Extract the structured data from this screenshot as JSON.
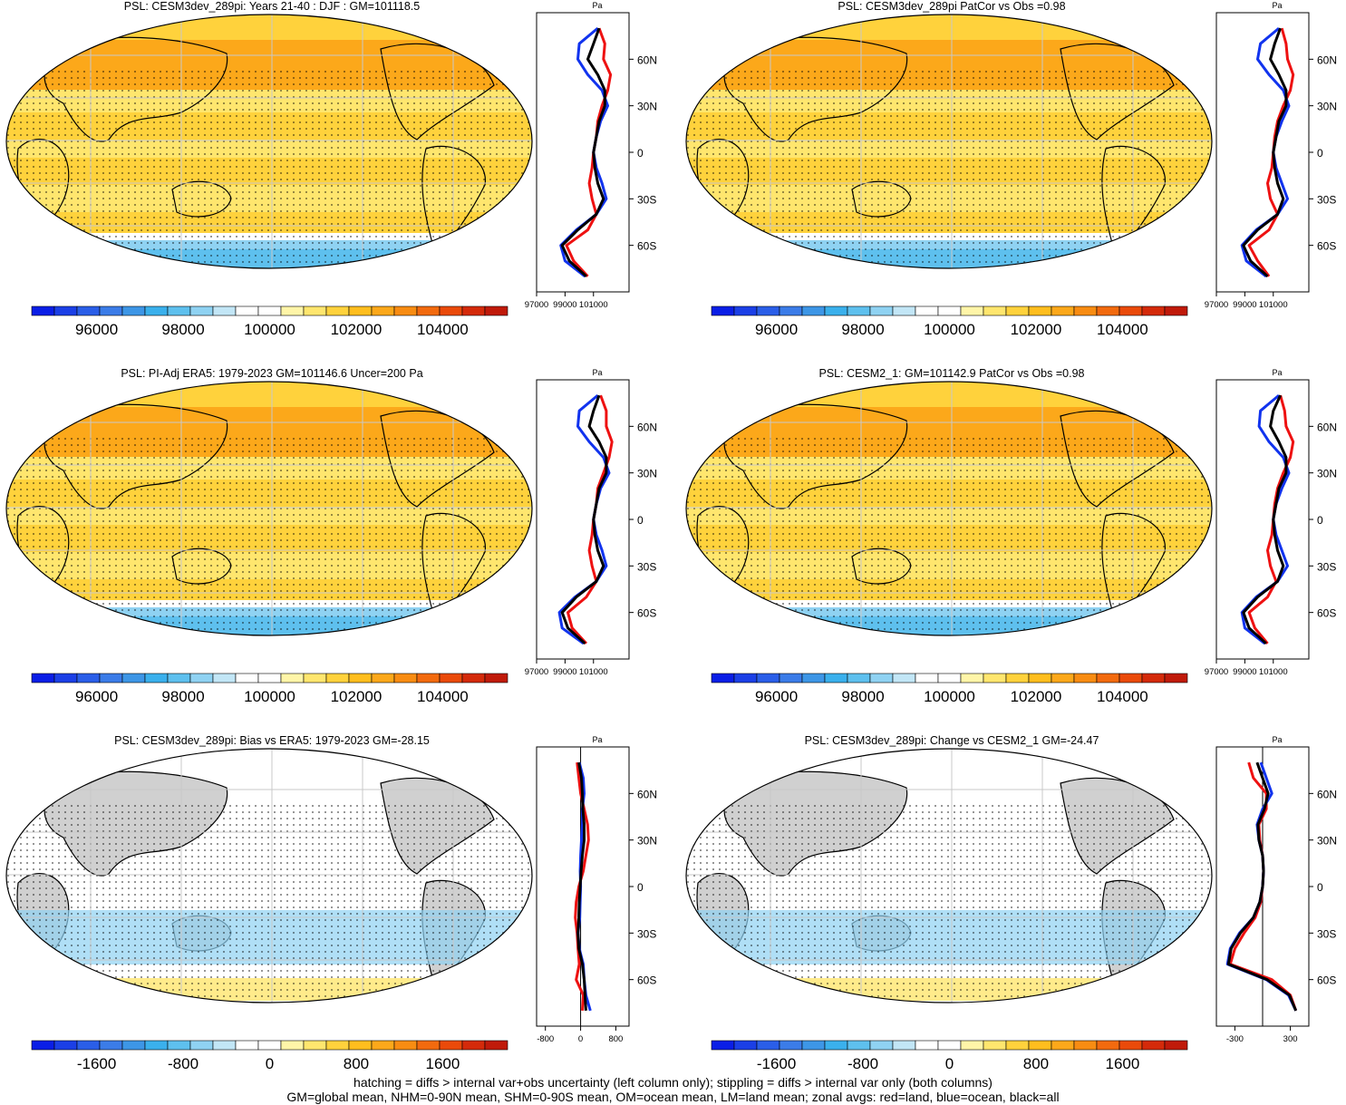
{
  "chart_data": [
    {
      "type": "heatmap",
      "title": "PSL: CESM3dev_289pi: Years 21-40 : DJF : GM=101118.5",
      "colorbar_ticks": [
        "96000",
        "98000",
        "100000",
        "102000",
        "104000"
      ],
      "colorbar_range": [
        94500,
        105500
      ],
      "zonal_axis_label": "Pa",
      "zonal_x_ticks": [
        "97000",
        "99000",
        "101000"
      ],
      "zonal_xlim": [
        97000,
        103500
      ],
      "zonal_y_ticks": [
        "60N",
        "30N",
        "0",
        "30S",
        "60S"
      ],
      "series": [
        {
          "name": "land",
          "color": "#ee1111",
          "lat": [
            80,
            70,
            60,
            50,
            40,
            30,
            20,
            10,
            0,
            -10,
            -20,
            -30,
            -40,
            -50,
            -60,
            -70,
            -80
          ],
          "values": [
            101400,
            101800,
            101700,
            102200,
            102000,
            101600,
            101300,
            101200,
            101000,
            100900,
            100700,
            100900,
            101200,
            100600,
            99100,
            99600,
            100600
          ]
        },
        {
          "name": "ocean",
          "color": "#1133ee",
          "lat": [
            80,
            70,
            60,
            50,
            40,
            30,
            20,
            10,
            0,
            -10,
            -20,
            -30,
            -40,
            -50,
            -60,
            -70,
            -80
          ],
          "values": [
            101300,
            100000,
            99900,
            100600,
            101600,
            102000,
            101500,
            101200,
            101000,
            101200,
            101600,
            101900,
            101200,
            99800,
            98700,
            99000,
            100400
          ]
        },
        {
          "name": "all",
          "color": "#000000",
          "lat": [
            80,
            70,
            60,
            50,
            40,
            30,
            20,
            10,
            0,
            -10,
            -20,
            -30,
            -40,
            -50,
            -60,
            -70,
            -80
          ],
          "values": [
            101400,
            101000,
            100600,
            101300,
            101800,
            101800,
            101400,
            101200,
            101000,
            101100,
            101300,
            101700,
            101200,
            99900,
            98800,
            99300,
            100500
          ]
        }
      ]
    },
    {
      "type": "heatmap",
      "title": "PSL: CESM3dev_289pi PatCor vs Obs =0.98",
      "colorbar_ticks": [
        "96000",
        "98000",
        "100000",
        "102000",
        "104000"
      ],
      "colorbar_range": [
        94500,
        105500
      ],
      "zonal_axis_label": "Pa",
      "zonal_x_ticks": [
        "97000",
        "99000",
        "101000"
      ],
      "zonal_xlim": [
        97000,
        103500
      ],
      "zonal_y_ticks": [
        "60N",
        "30N",
        "0",
        "30S",
        "60S"
      ],
      "series": [
        {
          "name": "land",
          "color": "#ee1111",
          "lat": [
            80,
            70,
            60,
            50,
            40,
            30,
            20,
            10,
            0,
            -10,
            -20,
            -30,
            -40,
            -50,
            -60,
            -70,
            -80
          ],
          "values": [
            101600,
            101900,
            102000,
            102400,
            102200,
            101700,
            101300,
            101100,
            101000,
            100900,
            100600,
            100800,
            101300,
            100700,
            99300,
            99900,
            100700
          ]
        },
        {
          "name": "ocean",
          "color": "#1133ee",
          "lat": [
            80,
            70,
            60,
            50,
            40,
            30,
            20,
            10,
            0,
            -10,
            -20,
            -30,
            -40,
            -50,
            -60,
            -70,
            -80
          ],
          "values": [
            101400,
            100100,
            99900,
            100700,
            101700,
            102100,
            101600,
            101200,
            101000,
            101200,
            101600,
            102000,
            101300,
            99800,
            98800,
            99100,
            100500
          ]
        },
        {
          "name": "all",
          "color": "#000000",
          "lat": [
            80,
            70,
            60,
            50,
            40,
            30,
            20,
            10,
            0,
            -10,
            -20,
            -30,
            -40,
            -50,
            -60,
            -70,
            -80
          ],
          "values": [
            101500,
            101100,
            100800,
            101400,
            101900,
            101900,
            101400,
            101200,
            101000,
            101100,
            101300,
            101700,
            101300,
            99900,
            98900,
            99400,
            100600
          ]
        }
      ]
    },
    {
      "type": "heatmap",
      "title": "PSL: PI-Adj ERA5: 1979-2023 GM=101146.6 Uncer=200 Pa",
      "colorbar_ticks": [
        "96000",
        "98000",
        "100000",
        "102000",
        "104000"
      ],
      "colorbar_range": [
        94500,
        105500
      ],
      "zonal_axis_label": "Pa",
      "zonal_x_ticks": [
        "97000",
        "99000",
        "101000"
      ],
      "zonal_xlim": [
        97000,
        103500
      ],
      "zonal_y_ticks": [
        "60N",
        "30N",
        "0",
        "30S",
        "60S"
      ],
      "series": [
        {
          "name": "land",
          "color": "#ee1111",
          "lat": [
            80,
            70,
            60,
            50,
            40,
            30,
            20,
            10,
            0,
            -10,
            -20,
            -30,
            -40,
            -50,
            -60,
            -70,
            -80
          ],
          "values": [
            101500,
            101900,
            101900,
            102300,
            102100,
            101700,
            101300,
            101200,
            101000,
            100900,
            100700,
            100900,
            101200,
            100500,
            99200,
            99500,
            100500
          ]
        },
        {
          "name": "ocean",
          "color": "#1133ee",
          "lat": [
            80,
            70,
            60,
            50,
            40,
            30,
            20,
            10,
            0,
            -10,
            -20,
            -30,
            -40,
            -50,
            -60,
            -70,
            -80
          ],
          "values": [
            101300,
            100000,
            99900,
            100700,
            101700,
            102100,
            101500,
            101200,
            101000,
            101200,
            101600,
            101900,
            101200,
            99700,
            98600,
            98800,
            100300
          ]
        },
        {
          "name": "all",
          "color": "#000000",
          "lat": [
            80,
            70,
            60,
            50,
            40,
            30,
            20,
            10,
            0,
            -10,
            -20,
            -30,
            -40,
            -50,
            -60,
            -70,
            -80
          ],
          "values": [
            101400,
            101000,
            100700,
            101400,
            101900,
            101900,
            101400,
            101200,
            101000,
            101100,
            101300,
            101700,
            101200,
            99800,
            98800,
            99200,
            100400
          ]
        }
      ]
    },
    {
      "type": "heatmap",
      "title": "PSL: CESM2_1: GM=101142.9 PatCor vs Obs =0.98",
      "colorbar_ticks": [
        "96000",
        "98000",
        "100000",
        "102000",
        "104000"
      ],
      "colorbar_range": [
        94500,
        105500
      ],
      "zonal_axis_label": "Pa",
      "zonal_x_ticks": [
        "97000",
        "99000",
        "101000"
      ],
      "zonal_xlim": [
        97000,
        103500
      ],
      "zonal_y_ticks": [
        "60N",
        "30N",
        "0",
        "30S",
        "60S"
      ],
      "series": [
        {
          "name": "land",
          "color": "#ee1111",
          "lat": [
            80,
            70,
            60,
            50,
            40,
            30,
            20,
            10,
            0,
            -10,
            -20,
            -30,
            -40,
            -50,
            -60,
            -70,
            -80
          ],
          "values": [
            101500,
            101800,
            101900,
            102400,
            102200,
            101700,
            101300,
            101100,
            101000,
            100900,
            100600,
            100800,
            101200,
            100600,
            99300,
            99700,
            100600
          ]
        },
        {
          "name": "ocean",
          "color": "#1133ee",
          "lat": [
            80,
            70,
            60,
            50,
            40,
            30,
            20,
            10,
            0,
            -10,
            -20,
            -30,
            -40,
            -50,
            -60,
            -70,
            -80
          ],
          "values": [
            101400,
            100100,
            100000,
            100700,
            101700,
            102100,
            101600,
            101200,
            101000,
            101200,
            101600,
            102000,
            101300,
            99800,
            98800,
            99000,
            100400
          ]
        },
        {
          "name": "all",
          "color": "#000000",
          "lat": [
            80,
            70,
            60,
            50,
            40,
            30,
            20,
            10,
            0,
            -10,
            -20,
            -30,
            -40,
            -50,
            -60,
            -70,
            -80
          ],
          "values": [
            101500,
            101000,
            100800,
            101400,
            101900,
            101900,
            101400,
            101200,
            101000,
            101100,
            101300,
            101700,
            101300,
            99900,
            98900,
            99300,
            100500
          ]
        }
      ]
    },
    {
      "type": "heatmap",
      "title": "PSL: CESM3dev_289pi: Bias vs ERA5: 1979-2023 GM=-28.15",
      "colorbar_ticks": [
        "-1600",
        "-800",
        "0",
        "800",
        "1600"
      ],
      "colorbar_range": [
        -2200,
        2200
      ],
      "zonal_axis_label": "Pa",
      "zonal_x_ticks": [
        "-800",
        "0",
        "800"
      ],
      "zonal_xlim": [
        -1000,
        1100
      ],
      "zonal_y_ticks": [
        "60N",
        "30N",
        "0",
        "30S",
        "60S"
      ],
      "series": [
        {
          "name": "land",
          "color": "#ee1111",
          "lat": [
            80,
            70,
            60,
            50,
            40,
            30,
            20,
            10,
            0,
            -10,
            -20,
            -30,
            -40,
            -50,
            -60,
            -70,
            -80
          ],
          "values": [
            -80,
            -40,
            0,
            80,
            160,
            180,
            120,
            60,
            -40,
            -100,
            -120,
            -80,
            -60,
            -30,
            -100,
            60,
            40
          ]
        },
        {
          "name": "ocean",
          "color": "#1133ee",
          "lat": [
            80,
            70,
            60,
            50,
            40,
            30,
            20,
            10,
            0,
            -10,
            -20,
            -30,
            -40,
            -50,
            -60,
            -70,
            -80
          ],
          "values": [
            -30,
            60,
            80,
            40,
            40,
            20,
            0,
            -10,
            0,
            -10,
            -20,
            -60,
            -30,
            60,
            80,
            120,
            220
          ]
        },
        {
          "name": "all",
          "color": "#000000",
          "lat": [
            80,
            70,
            60,
            50,
            40,
            30,
            20,
            10,
            0,
            -10,
            -20,
            -30,
            -40,
            -50,
            -60,
            -70,
            -80
          ],
          "values": [
            -40,
            20,
            40,
            50,
            80,
            80,
            40,
            10,
            -10,
            -30,
            -40,
            -60,
            -40,
            40,
            80,
            100,
            120
          ]
        }
      ]
    },
    {
      "type": "heatmap",
      "title": "PSL: CESM3dev_289pi: Change vs CESM2_1 GM=-24.47",
      "colorbar_ticks": [
        "-1600",
        "-800",
        "0",
        "800",
        "1600"
      ],
      "colorbar_range": [
        -2200,
        2200
      ],
      "zonal_axis_label": "Pa",
      "zonal_x_ticks": [
        "-300",
        "300"
      ],
      "zonal_xlim": [
        -500,
        500
      ],
      "zonal_y_ticks": [
        "60N",
        "30N",
        "0",
        "30S",
        "60S"
      ],
      "series": [
        {
          "name": "land",
          "color": "#ee1111",
          "lat": [
            80,
            70,
            60,
            50,
            40,
            30,
            20,
            10,
            0,
            -10,
            -20,
            -30,
            -40,
            -50,
            -60,
            -70,
            -80
          ],
          "values": [
            -150,
            -100,
            40,
            40,
            -40,
            -30,
            0,
            10,
            0,
            -20,
            -80,
            -200,
            -300,
            -350,
            100,
            300,
            360
          ]
        },
        {
          "name": "ocean",
          "color": "#1133ee",
          "lat": [
            80,
            70,
            60,
            50,
            40,
            30,
            20,
            10,
            0,
            -10,
            -20,
            -30,
            -40,
            -50,
            -60,
            -70,
            -80
          ],
          "values": [
            -20,
            40,
            100,
            0,
            -60,
            -40,
            0,
            10,
            0,
            -30,
            -100,
            -250,
            -350,
            -380,
            40,
            280,
            360
          ]
        },
        {
          "name": "all",
          "color": "#000000",
          "lat": [
            80,
            70,
            60,
            50,
            40,
            30,
            20,
            10,
            0,
            -10,
            -20,
            -30,
            -40,
            -50,
            -60,
            -70,
            -80
          ],
          "values": [
            -60,
            0,
            60,
            20,
            -50,
            -40,
            0,
            10,
            0,
            -30,
            -100,
            -240,
            -340,
            -370,
            50,
            290,
            360
          ]
        }
      ]
    }
  ],
  "footer": {
    "line1": "hatching = diffs > internal var+obs uncertainty (left column only); stippling = diffs > internal var only (both columns)",
    "line2": "GM=global mean, NHM=0-90N mean, SHM=0-90S mean, OM=ocean mean, LM=land mean; zonal avgs: red=land, blue=ocean, black=all"
  }
}
